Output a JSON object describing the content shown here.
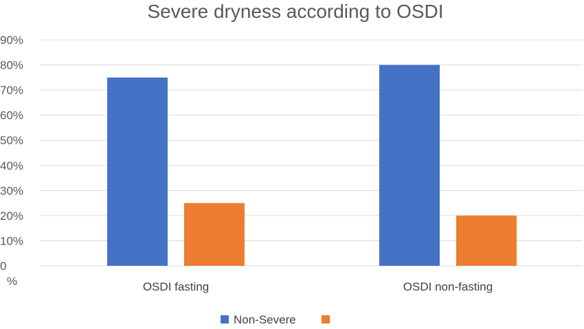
{
  "chart_data": {
    "type": "bar",
    "title": "Severe dryness according to OSDI",
    "categories": [
      "OSDI fasting",
      "OSDI non-fasting"
    ],
    "series": [
      {
        "name": "Non-Severe",
        "values": [
          75,
          80
        ],
        "color": "#4472C4"
      },
      {
        "name": "",
        "values": [
          25,
          20
        ],
        "color": "#ED7D31"
      }
    ],
    "ylim": [
      0,
      90
    ],
    "yticks": [
      {
        "value": 90,
        "label": "90%"
      },
      {
        "value": 80,
        "label": "80%"
      },
      {
        "value": 70,
        "label": "70%"
      },
      {
        "value": 60,
        "label": "60%"
      },
      {
        "value": 50,
        "label": "50%"
      },
      {
        "value": 40,
        "label": "40%"
      },
      {
        "value": 30,
        "label": "30%"
      },
      {
        "value": 20,
        "label": "20%"
      },
      {
        "value": 10,
        "label": "10%"
      },
      {
        "value": 0,
        "label": "0"
      }
    ],
    "zero_unit_label": "%",
    "xlabel": "",
    "ylabel": "",
    "grid": true,
    "legend_position": "bottom"
  }
}
